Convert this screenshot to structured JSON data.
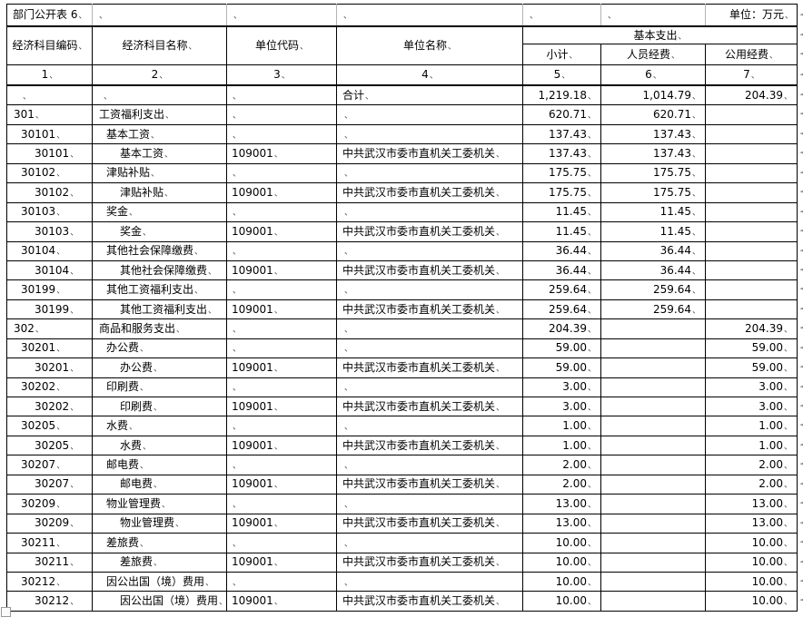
{
  "document": {
    "table_label": "部门公开表 6",
    "unit_note": "单位：万元"
  },
  "marks": {
    "cell_end": "、",
    "row_end": "◄"
  },
  "table": {
    "column_headers": {
      "code": "经济科目编码",
      "name": "经济科目名称",
      "unit_code": "单位代码",
      "unit_name": "单位名称",
      "basic_group": "基本支出",
      "subtotal": "小计",
      "personnel": "人员经费",
      "public": "公用经费"
    },
    "index_row": [
      "1",
      "2",
      "3",
      "4",
      "5",
      "6",
      "7"
    ],
    "rows": [
      {
        "code": "",
        "name": "",
        "indent": 0,
        "unit_code": "",
        "unit_name": "合计",
        "subtotal": "1,219.18",
        "personnel": "1,014.79",
        "public": "204.39"
      },
      {
        "code": "301",
        "name": "工资福利支出",
        "indent": 0,
        "unit_code": "",
        "unit_name": "",
        "subtotal": "620.71",
        "personnel": "620.71",
        "public": ""
      },
      {
        "code": "30101",
        "name": "基本工资",
        "indent": 1,
        "unit_code": "",
        "unit_name": "",
        "subtotal": "137.43",
        "personnel": "137.43",
        "public": ""
      },
      {
        "code": "30101",
        "name": "基本工资",
        "indent": 2,
        "unit_code": "109001",
        "unit_name": "中共武汉市委市直机关工委机关",
        "subtotal": "137.43",
        "personnel": "137.43",
        "public": ""
      },
      {
        "code": "30102",
        "name": "津贴补贴",
        "indent": 1,
        "unit_code": "",
        "unit_name": "",
        "subtotal": "175.75",
        "personnel": "175.75",
        "public": ""
      },
      {
        "code": "30102",
        "name": "津贴补贴",
        "indent": 2,
        "unit_code": "109001",
        "unit_name": "中共武汉市委市直机关工委机关",
        "subtotal": "175.75",
        "personnel": "175.75",
        "public": ""
      },
      {
        "code": "30103",
        "name": "奖金",
        "indent": 1,
        "unit_code": "",
        "unit_name": "",
        "subtotal": "11.45",
        "personnel": "11.45",
        "public": ""
      },
      {
        "code": "30103",
        "name": "奖金",
        "indent": 2,
        "unit_code": "109001",
        "unit_name": "中共武汉市委市直机关工委机关",
        "subtotal": "11.45",
        "personnel": "11.45",
        "public": ""
      },
      {
        "code": "30104",
        "name": "其他社会保障缴费",
        "indent": 1,
        "unit_code": "",
        "unit_name": "",
        "subtotal": "36.44",
        "personnel": "36.44",
        "public": ""
      },
      {
        "code": "30104",
        "name": "其他社会保障缴费",
        "indent": 2,
        "unit_code": "109001",
        "unit_name": "中共武汉市委市直机关工委机关",
        "subtotal": "36.44",
        "personnel": "36.44",
        "public": ""
      },
      {
        "code": "30199",
        "name": "其他工资福利支出",
        "indent": 1,
        "unit_code": "",
        "unit_name": "",
        "subtotal": "259.64",
        "personnel": "259.64",
        "public": ""
      },
      {
        "code": "30199",
        "name": "其他工资福利支出",
        "indent": 2,
        "unit_code": "109001",
        "unit_name": "中共武汉市委市直机关工委机关",
        "subtotal": "259.64",
        "personnel": "259.64",
        "public": ""
      },
      {
        "code": "302",
        "name": "商品和服务支出",
        "indent": 0,
        "unit_code": "",
        "unit_name": "",
        "subtotal": "204.39",
        "personnel": "",
        "public": "204.39"
      },
      {
        "code": "30201",
        "name": "办公费",
        "indent": 1,
        "unit_code": "",
        "unit_name": "",
        "subtotal": "59.00",
        "personnel": "",
        "public": "59.00"
      },
      {
        "code": "30201",
        "name": "办公费",
        "indent": 2,
        "unit_code": "109001",
        "unit_name": "中共武汉市委市直机关工委机关",
        "subtotal": "59.00",
        "personnel": "",
        "public": "59.00"
      },
      {
        "code": "30202",
        "name": "印刷费",
        "indent": 1,
        "unit_code": "",
        "unit_name": "",
        "subtotal": "3.00",
        "personnel": "",
        "public": "3.00"
      },
      {
        "code": "30202",
        "name": "印刷费",
        "indent": 2,
        "unit_code": "109001",
        "unit_name": "中共武汉市委市直机关工委机关",
        "subtotal": "3.00",
        "personnel": "",
        "public": "3.00"
      },
      {
        "code": "30205",
        "name": "水费",
        "indent": 1,
        "unit_code": "",
        "unit_name": "",
        "subtotal": "1.00",
        "personnel": "",
        "public": "1.00"
      },
      {
        "code": "30205",
        "name": "水费",
        "indent": 2,
        "unit_code": "109001",
        "unit_name": "中共武汉市委市直机关工委机关",
        "subtotal": "1.00",
        "personnel": "",
        "public": "1.00"
      },
      {
        "code": "30207",
        "name": "邮电费",
        "indent": 1,
        "unit_code": "",
        "unit_name": "",
        "subtotal": "2.00",
        "personnel": "",
        "public": "2.00"
      },
      {
        "code": "30207",
        "name": "邮电费",
        "indent": 2,
        "unit_code": "109001",
        "unit_name": "中共武汉市委市直机关工委机关",
        "subtotal": "2.00",
        "personnel": "",
        "public": "2.00"
      },
      {
        "code": "30209",
        "name": "物业管理费",
        "indent": 1,
        "unit_code": "",
        "unit_name": "",
        "subtotal": "13.00",
        "personnel": "",
        "public": "13.00"
      },
      {
        "code": "30209",
        "name": "物业管理费",
        "indent": 2,
        "unit_code": "109001",
        "unit_name": "中共武汉市委市直机关工委机关",
        "subtotal": "13.00",
        "personnel": "",
        "public": "13.00"
      },
      {
        "code": "30211",
        "name": "差旅费",
        "indent": 1,
        "unit_code": "",
        "unit_name": "",
        "subtotal": "10.00",
        "personnel": "",
        "public": "10.00"
      },
      {
        "code": "30211",
        "name": "差旅费",
        "indent": 2,
        "unit_code": "109001",
        "unit_name": "中共武汉市委市直机关工委机关",
        "subtotal": "10.00",
        "personnel": "",
        "public": "10.00"
      },
      {
        "code": "30212",
        "name": "因公出国（境）费用",
        "indent": 1,
        "unit_code": "",
        "unit_name": "",
        "subtotal": "10.00",
        "personnel": "",
        "public": "10.00"
      },
      {
        "code": "30212",
        "name": "因公出国（境）费用",
        "indent": 2,
        "unit_code": "109001",
        "unit_name": "中共武汉市委市直机关工委机关",
        "subtotal": "10.00",
        "personnel": "",
        "public": "10.00"
      }
    ]
  }
}
